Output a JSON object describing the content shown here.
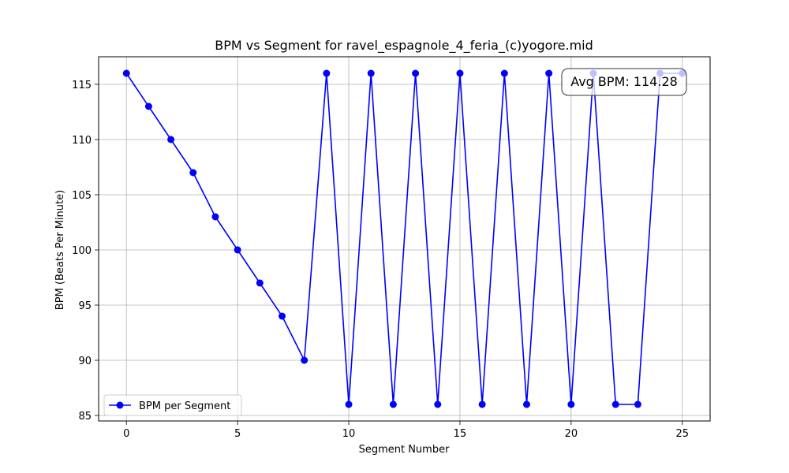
{
  "chart_data": {
    "type": "line",
    "title": "BPM vs Segment for ravel_espagnole_4_feria_(c)yogore.mid",
    "xlabel": "Segment Number",
    "ylabel": "BPM (Beats Per Minute)",
    "xlim": [
      -1.25,
      26.25
    ],
    "ylim": [
      84.5,
      117.5
    ],
    "xticks": [
      0,
      5,
      10,
      15,
      20,
      25
    ],
    "yticks": [
      85,
      90,
      95,
      100,
      105,
      110,
      115
    ],
    "grid": true,
    "legend_position": "lower-left",
    "series": [
      {
        "name": "BPM per Segment",
        "color": "#0000ff",
        "marker": "circle",
        "x": [
          0,
          1,
          2,
          3,
          4,
          5,
          6,
          7,
          8,
          9,
          10,
          11,
          12,
          13,
          14,
          15,
          16,
          17,
          18,
          19,
          20,
          21,
          22,
          23,
          24,
          25
        ],
        "y": [
          116,
          113,
          110,
          107,
          103,
          100,
          97,
          94,
          90,
          116,
          86,
          116,
          86,
          116,
          86,
          116,
          86,
          116,
          86,
          116,
          86,
          116,
          86,
          86,
          116,
          116
        ]
      }
    ],
    "annotation": {
      "text": "Avg BPM: 114.28",
      "position": "top-right"
    }
  }
}
